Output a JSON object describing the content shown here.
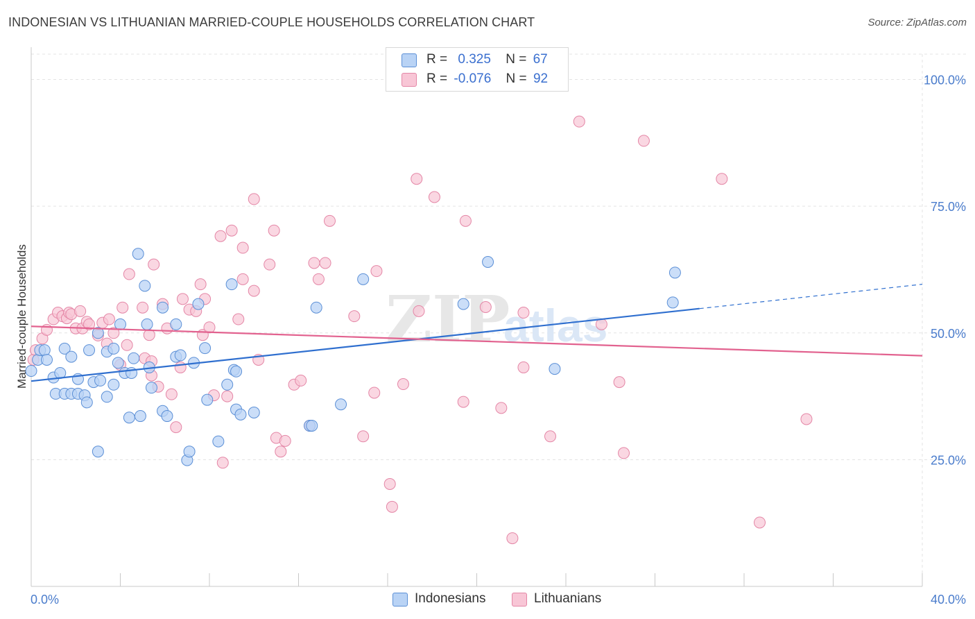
{
  "header": {
    "title": "INDONESIAN VS LITHUANIAN MARRIED-COUPLE HOUSEHOLDS CORRELATION CHART",
    "source": "Source: ZipAtlas.com"
  },
  "legend": {
    "rows": [
      {
        "r_label": "R =",
        "r_value": "0.325",
        "n_label": "N =",
        "n_value": "67"
      },
      {
        "r_label": "R =",
        "r_value": "-0.076",
        "n_label": "N =",
        "n_value": "92"
      }
    ],
    "series": [
      "Indonesians",
      "Lithuanians"
    ]
  },
  "colors": {
    "indonesians_fill": "#b9d3f5",
    "indonesians_stroke": "#5b8fd6",
    "indonesians_line": "#2f6fcf",
    "lithuanians_fill": "#f8c6d6",
    "lithuanians_stroke": "#e486a6",
    "lithuanians_line": "#e2628f",
    "axis_label": "#4a7ccc",
    "grid": "#e3e3e3"
  },
  "watermark": {
    "zip": "ZIP",
    "atlas": "atlas"
  },
  "chart_data": {
    "type": "scatter",
    "title": "INDONESIAN VS LITHUANIAN MARRIED-COUPLE HOUSEHOLDS CORRELATION CHART",
    "xlabel": "",
    "ylabel": "Married-couple Households",
    "xlim": [
      0,
      40
    ],
    "ylim": [
      0,
      105
    ],
    "x_tick_labels": [
      "0.0%",
      "40.0%"
    ],
    "y_tick_labels": [
      "25.0%",
      "50.0%",
      "75.0%",
      "100.0%"
    ],
    "y_ticks": [
      25,
      50,
      75,
      100
    ],
    "grid": true,
    "legend_position": "top-center",
    "series": [
      {
        "name": "Indonesians",
        "trend": {
          "x0": 0,
          "y0": 40.5,
          "x1": 30,
          "y1": 54.8,
          "dashed_to_x": 40,
          "dashed_to_y": 59.6
        },
        "points": [
          [
            0.0,
            42.5
          ],
          [
            0.3,
            44.7
          ],
          [
            0.4,
            46.6
          ],
          [
            0.6,
            46.6
          ],
          [
            0.7,
            44.7
          ],
          [
            1.0,
            41.2
          ],
          [
            1.3,
            42.1
          ],
          [
            1.1,
            38.0
          ],
          [
            1.5,
            38.0
          ],
          [
            1.5,
            46.9
          ],
          [
            1.8,
            38.0
          ],
          [
            1.8,
            45.3
          ],
          [
            2.1,
            38.0
          ],
          [
            2.1,
            40.9
          ],
          [
            2.4,
            37.7
          ],
          [
            2.5,
            36.3
          ],
          [
            2.6,
            46.6
          ],
          [
            2.8,
            40.3
          ],
          [
            3.0,
            50.0
          ],
          [
            3.0,
            26.6
          ],
          [
            3.1,
            40.6
          ],
          [
            3.4,
            37.4
          ],
          [
            3.4,
            46.3
          ],
          [
            3.7,
            46.9
          ],
          [
            3.7,
            39.8
          ],
          [
            3.9,
            44.1
          ],
          [
            4.0,
            51.7
          ],
          [
            4.2,
            42.1
          ],
          [
            4.4,
            33.3
          ],
          [
            4.5,
            42.1
          ],
          [
            4.6,
            45.0
          ],
          [
            4.8,
            65.6
          ],
          [
            4.9,
            33.6
          ],
          [
            5.1,
            59.3
          ],
          [
            5.2,
            51.7
          ],
          [
            5.3,
            43.2
          ],
          [
            5.4,
            39.2
          ],
          [
            5.9,
            34.6
          ],
          [
            5.9,
            55.0
          ],
          [
            6.1,
            33.6
          ],
          [
            6.5,
            51.7
          ],
          [
            6.5,
            45.3
          ],
          [
            6.7,
            45.6
          ],
          [
            7.0,
            24.9
          ],
          [
            7.1,
            26.6
          ],
          [
            7.3,
            44.1
          ],
          [
            7.5,
            55.7
          ],
          [
            7.9,
            36.8
          ],
          [
            7.8,
            47.0
          ],
          [
            8.4,
            28.6
          ],
          [
            8.8,
            39.8
          ],
          [
            9.0,
            59.6
          ],
          [
            9.1,
            42.7
          ],
          [
            9.2,
            42.4
          ],
          [
            9.2,
            34.9
          ],
          [
            9.4,
            33.9
          ],
          [
            10.0,
            34.3
          ],
          [
            12.5,
            31.7
          ],
          [
            12.6,
            31.7
          ],
          [
            12.8,
            55.0
          ],
          [
            13.9,
            35.9
          ],
          [
            14.9,
            60.6
          ],
          [
            19.4,
            55.7
          ],
          [
            20.5,
            64.0
          ],
          [
            23.5,
            42.9
          ],
          [
            28.9,
            61.9
          ],
          [
            28.8,
            56.0
          ]
        ]
      },
      {
        "name": "Lithuanians",
        "trend": {
          "x0": 0,
          "y0": 51.3,
          "x1": 40,
          "y1": 45.5
        },
        "points": [
          [
            0.1,
            44.7
          ],
          [
            0.2,
            46.6
          ],
          [
            0.5,
            48.9
          ],
          [
            0.7,
            50.6
          ],
          [
            1.0,
            52.7
          ],
          [
            1.2,
            54.0
          ],
          [
            1.4,
            53.3
          ],
          [
            1.6,
            52.9
          ],
          [
            1.7,
            54.0
          ],
          [
            1.8,
            53.7
          ],
          [
            2.0,
            50.9
          ],
          [
            2.2,
            54.3
          ],
          [
            2.3,
            50.9
          ],
          [
            2.5,
            52.2
          ],
          [
            2.6,
            51.7
          ],
          [
            3.0,
            49.5
          ],
          [
            3.2,
            52.0
          ],
          [
            3.4,
            47.9
          ],
          [
            3.5,
            52.7
          ],
          [
            3.7,
            50.0
          ],
          [
            4.0,
            43.7
          ],
          [
            4.1,
            55.0
          ],
          [
            4.3,
            47.6
          ],
          [
            4.4,
            61.6
          ],
          [
            5.0,
            55.0
          ],
          [
            5.1,
            45.0
          ],
          [
            5.3,
            49.6
          ],
          [
            5.4,
            44.4
          ],
          [
            5.4,
            41.6
          ],
          [
            5.5,
            63.5
          ],
          [
            5.7,
            39.4
          ],
          [
            5.9,
            55.7
          ],
          [
            6.1,
            50.9
          ],
          [
            6.3,
            37.9
          ],
          [
            6.5,
            31.4
          ],
          [
            6.7,
            43.2
          ],
          [
            6.8,
            56.7
          ],
          [
            7.1,
            54.6
          ],
          [
            7.4,
            54.3
          ],
          [
            7.6,
            59.6
          ],
          [
            7.7,
            49.6
          ],
          [
            7.8,
            56.7
          ],
          [
            8.0,
            51.1
          ],
          [
            8.2,
            37.7
          ],
          [
            8.5,
            69.1
          ],
          [
            8.6,
            24.4
          ],
          [
            8.8,
            37.5
          ],
          [
            9.0,
            70.2
          ],
          [
            9.3,
            52.7
          ],
          [
            9.5,
            66.8
          ],
          [
            9.5,
            60.6
          ],
          [
            10.0,
            58.3
          ],
          [
            10.0,
            76.4
          ],
          [
            10.2,
            44.7
          ],
          [
            10.7,
            63.5
          ],
          [
            10.9,
            70.2
          ],
          [
            11.0,
            29.3
          ],
          [
            11.2,
            26.6
          ],
          [
            11.4,
            28.7
          ],
          [
            11.8,
            39.8
          ],
          [
            12.1,
            40.6
          ],
          [
            12.5,
            31.7
          ],
          [
            12.7,
            63.8
          ],
          [
            12.9,
            60.6
          ],
          [
            13.2,
            63.8
          ],
          [
            13.4,
            72.1
          ],
          [
            14.5,
            53.3
          ],
          [
            14.9,
            29.6
          ],
          [
            15.4,
            38.2
          ],
          [
            15.5,
            62.2
          ],
          [
            16.1,
            20.2
          ],
          [
            16.2,
            15.7
          ],
          [
            16.7,
            39.9
          ],
          [
            17.3,
            80.4
          ],
          [
            17.4,
            54.3
          ],
          [
            18.1,
            76.8
          ],
          [
            19.4,
            36.4
          ],
          [
            19.5,
            72.1
          ],
          [
            20.4,
            55.1
          ],
          [
            21.1,
            35.2
          ],
          [
            21.6,
            9.5
          ],
          [
            22.1,
            54.0
          ],
          [
            22.1,
            43.2
          ],
          [
            23.3,
            29.6
          ],
          [
            24.6,
            91.7
          ],
          [
            25.6,
            51.7
          ],
          [
            26.4,
            40.3
          ],
          [
            26.6,
            26.3
          ],
          [
            27.5,
            87.9
          ],
          [
            31.0,
            80.4
          ],
          [
            32.7,
            12.6
          ],
          [
            34.8,
            33.0
          ]
        ]
      }
    ]
  }
}
